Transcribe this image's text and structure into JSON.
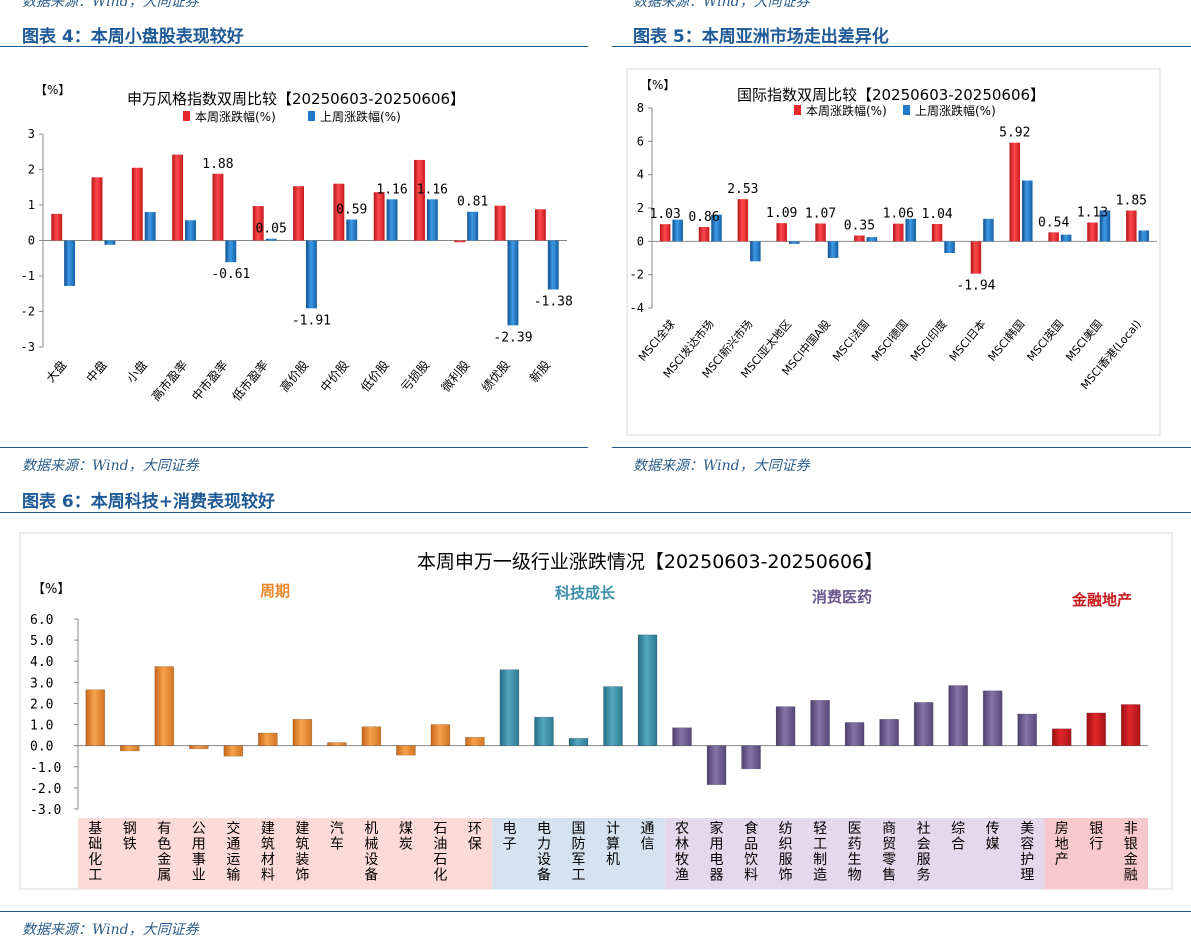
{
  "top_source_left": "数据来源：Wind，大同证券",
  "top_source_right": "数据来源：Wind，大同证券",
  "fig4": {
    "title": "图表 4：本周小盘股表现较好",
    "source": "数据来源：Wind，大同证券"
  },
  "fig5": {
    "title": "图表 5：本周亚洲市场走出差异化",
    "source": "数据来源：Wind，大同证券"
  },
  "fig6": {
    "title": "图表 6：本周科技+消费表现较好",
    "source": "数据来源：Wind，大同证券"
  },
  "colors": {
    "this_week": "#e8272b",
    "last_week": "#1f78c8",
    "cycle": "#e98a2c",
    "tech": "#3a8ea8",
    "consumer": "#6a5a8e",
    "finance": "#c51a1e"
  },
  "chart_data": [
    {
      "type": "bar",
      "title": "申万风格指数双周比较【20250603-20250606】",
      "ylabel": "【%】",
      "ylim": [
        -3,
        3
      ],
      "yticks": [
        "3",
        "2",
        "1",
        "0",
        "-1",
        "-2",
        "-3"
      ],
      "legend_position": "top",
      "categories": [
        "大盘",
        "中盘",
        "小盘",
        "高市盈率",
        "中市盈率",
        "低市盈率",
        "高价股",
        "中价股",
        "低价股",
        "亏损股",
        "微利股",
        "绩优股",
        "新股"
      ],
      "series": [
        {
          "name": "本周涨跌幅(%)",
          "values": [
            0.75,
            1.78,
            2.05,
            2.42,
            1.88,
            0.97,
            1.53,
            1.6,
            1.36,
            2.27,
            -0.05,
            0.98,
            0.88
          ]
        },
        {
          "name": "上周涨跌幅(%)",
          "values": [
            -1.28,
            -0.12,
            0.8,
            0.57,
            -0.61,
            0.05,
            -1.91,
            0.59,
            1.16,
            1.16,
            0.81,
            -2.39,
            -1.38
          ]
        }
      ],
      "data_labels": [
        {
          "category_index": 4,
          "series": 0,
          "text": "1.88"
        },
        {
          "category_index": 4,
          "series": 1,
          "text": "-0.61"
        },
        {
          "category_index": 5,
          "series": 1,
          "text": "0.05"
        },
        {
          "category_index": 6,
          "series": 1,
          "text": "-1.91"
        },
        {
          "category_index": 7,
          "series": 1,
          "text": "0.59"
        },
        {
          "category_index": 8,
          "series": 1,
          "text": "1.16"
        },
        {
          "category_index": 9,
          "series": 1,
          "text": "1.16"
        },
        {
          "category_index": 10,
          "series": 1,
          "text": "0.81"
        },
        {
          "category_index": 11,
          "series": 1,
          "text": "-2.39"
        },
        {
          "category_index": 12,
          "series": 1,
          "text": "-1.38"
        }
      ]
    },
    {
      "type": "bar",
      "title": "国际指数双周比较【20250603-20250606】",
      "ylabel": "【%】",
      "ylim": [
        -4,
        8
      ],
      "yticks": [
        "8",
        "6",
        "4",
        "2",
        "0",
        "-2",
        "-4"
      ],
      "legend_position": "top",
      "categories": [
        "MSCI全球",
        "MSCI发达市场",
        "MSCI新兴市场",
        "MSCI亚太地区",
        "MSCI中国A股",
        "MSCI法国",
        "MSCI德国",
        "MSCI印度",
        "MSCI日本",
        "MSCI韩国",
        "MSCI英国",
        "MSCI美国",
        "MSCI香港(Local)"
      ],
      "series": [
        {
          "name": "本周涨跌幅(%)",
          "values": [
            1.03,
            0.86,
            2.53,
            1.09,
            1.07,
            0.35,
            1.06,
            1.04,
            -1.94,
            5.92,
            0.54,
            1.13,
            1.85
          ]
        },
        {
          "name": "上周涨跌幅(%)",
          "values": [
            1.3,
            1.6,
            -1.2,
            -0.15,
            -1.0,
            0.25,
            1.35,
            -0.7,
            1.35,
            3.65,
            0.4,
            1.85,
            0.65
          ]
        }
      ],
      "data_labels": [
        {
          "category_index": 0,
          "series": 0,
          "text": "1.03"
        },
        {
          "category_index": 1,
          "series": 0,
          "text": "0.86"
        },
        {
          "category_index": 2,
          "series": 0,
          "text": "2.53"
        },
        {
          "category_index": 3,
          "series": 0,
          "text": "1.09"
        },
        {
          "category_index": 4,
          "series": 0,
          "text": "1.07"
        },
        {
          "category_index": 5,
          "series": 0,
          "text": "0.35"
        },
        {
          "category_index": 6,
          "series": 0,
          "text": "1.06"
        },
        {
          "category_index": 7,
          "series": 0,
          "text": "1.04"
        },
        {
          "category_index": 8,
          "series": 0,
          "text": "-1.94"
        },
        {
          "category_index": 9,
          "series": 0,
          "text": "5.92"
        },
        {
          "category_index": 10,
          "series": 0,
          "text": "0.54"
        },
        {
          "category_index": 11,
          "series": 0,
          "text": "1.13"
        },
        {
          "category_index": 12,
          "series": 0,
          "text": "1.85"
        }
      ]
    },
    {
      "type": "bar",
      "title": "本周申万一级行业涨跌情况【20250603-20250606】",
      "ylabel": "【%】",
      "ylim": [
        -3,
        6
      ],
      "yticks": [
        "6.0",
        "5.0",
        "4.0",
        "3.0",
        "2.0",
        "1.0",
        "0.0",
        "-1.0",
        "-2.0",
        "-3.0"
      ],
      "groups": [
        {
          "name": "周期",
          "color": "#e98a2c",
          "band": "#fbdad7",
          "count": 12
        },
        {
          "name": "科技成长",
          "color": "#3a8ea8",
          "band": "#d5e3f0",
          "count": 5
        },
        {
          "name": "消费医药",
          "color": "#6a5a8e",
          "band": "#e3d8ec",
          "count": 11
        },
        {
          "name": "金融地产",
          "color": "#c51a1e",
          "band": "#f7c9cc",
          "count": 3
        }
      ],
      "categories": [
        "基础化工",
        "钢铁",
        "有色金属",
        "公用事业",
        "交通运输",
        "建筑材料",
        "建筑装饰",
        "汽车",
        "机械设备",
        "煤炭",
        "石油石化",
        "环保",
        "电子",
        "电力设备",
        "国防军工",
        "计算机",
        "通信",
        "农林牧渔",
        "家用电器",
        "食品饮料",
        "纺织服饰",
        "轻工制造",
        "医药生物",
        "商贸零售",
        "社会服务",
        "综合",
        "传媒",
        "美容护理",
        "房地产",
        "银行",
        "非银金融"
      ],
      "values": [
        2.65,
        -0.25,
        3.75,
        -0.15,
        -0.5,
        0.6,
        1.25,
        0.15,
        0.9,
        -0.45,
        1.0,
        0.4,
        3.6,
        1.35,
        0.35,
        2.8,
        5.25,
        0.85,
        -1.85,
        -1.1,
        1.85,
        2.15,
        1.1,
        1.25,
        2.05,
        2.85,
        2.6,
        1.5,
        0.8,
        1.55,
        1.95
      ]
    }
  ]
}
